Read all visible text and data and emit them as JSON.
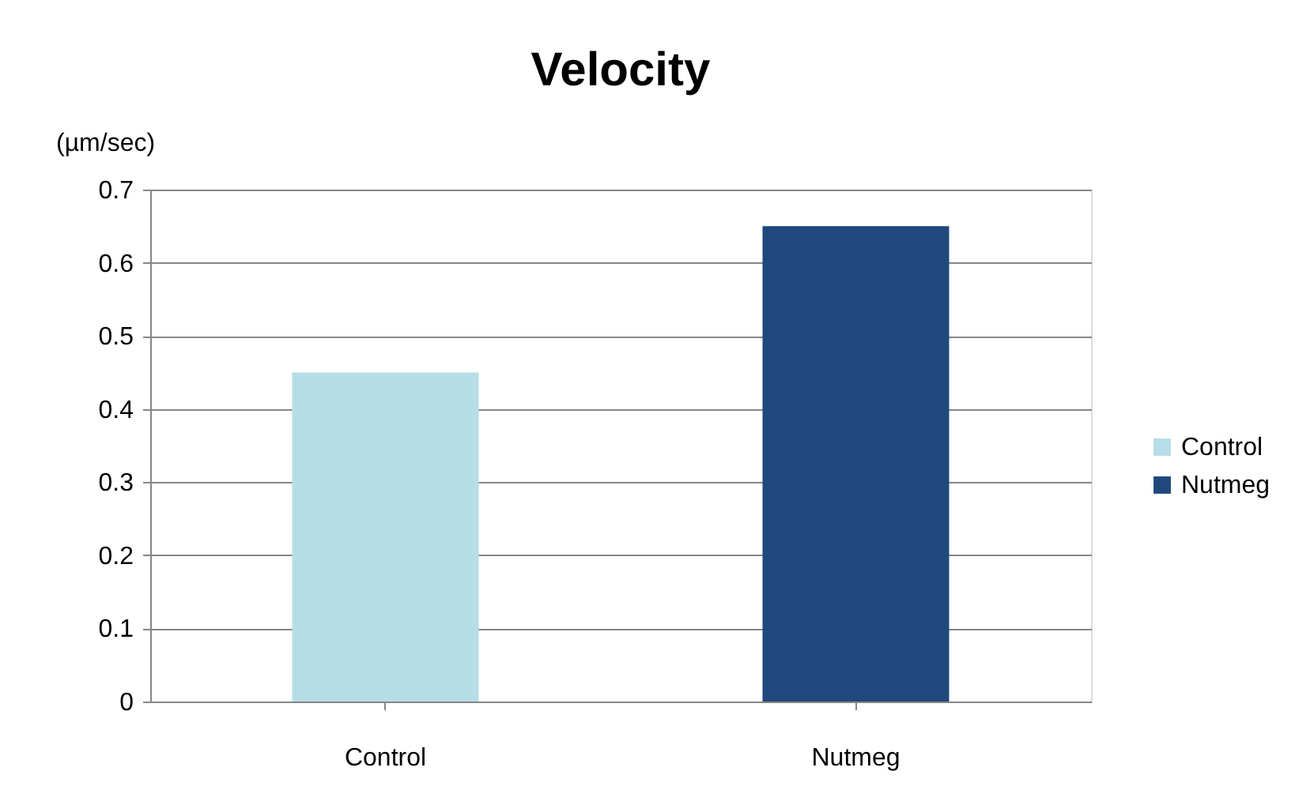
{
  "chart_data": {
    "type": "bar",
    "title": "Velocity",
    "ylabel": "(µm/sec)",
    "categories": [
      "Control",
      "Nutmeg"
    ],
    "series": [
      {
        "name": "Control",
        "color": "#b7dde8",
        "values": [
          0.45,
          null
        ]
      },
      {
        "name": "Nutmeg",
        "color": "#1f497d",
        "values": [
          null,
          0.65
        ]
      }
    ],
    "stacked": true,
    "ylim": [
      0,
      0.7
    ],
    "yticks": [
      {
        "value": 0,
        "label": "0"
      },
      0.1,
      0.2,
      0.3,
      0.4,
      0.5,
      0.6,
      0.7
    ],
    "grid": "y",
    "legend": "right"
  }
}
